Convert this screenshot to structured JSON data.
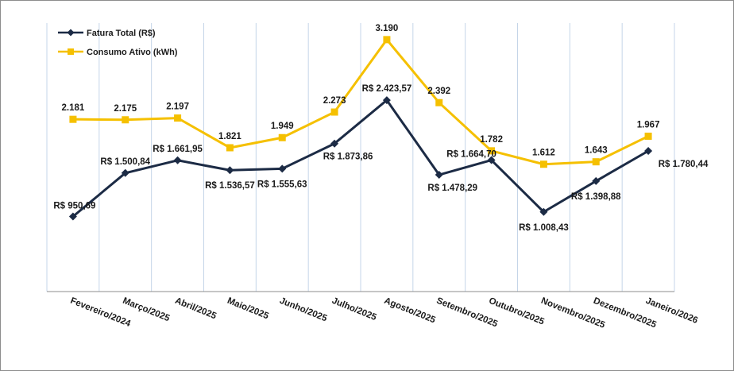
{
  "chart_data": {
    "type": "line",
    "title": "",
    "xlabel": "",
    "ylabel": "",
    "categories": [
      "Fevereiro/2024",
      "Março/2025",
      "Abril/2025",
      "Maio/2025",
      "Junho/2025",
      "Julho/2025",
      "Agosto/2025",
      "Setembro/2025",
      "Outubro/2025",
      "Novembro/2025",
      "Dezembro/2025",
      "Janeiro/2026"
    ],
    "ylim": [
      0,
      3400
    ],
    "grid": "vertical",
    "legend": "top-left",
    "series": [
      {
        "name": "Fatura Total (R$)",
        "color": "#1c2b45",
        "marker": "diamond",
        "values": [
          950.69,
          1500.84,
          1661.95,
          1536.57,
          1555.63,
          1873.86,
          2423.57,
          1478.29,
          1664.7,
          1008.43,
          1398.88,
          1780.44
        ],
        "labels": [
          "R$ 950,69",
          "R$ 1.500,84",
          "R$ 1.661,95",
          "R$ 1.536,57",
          "R$ 1.555,63",
          "R$ 1.873,86",
          "R$ 2.423,57",
          "R$ 1.478,29",
          "R$ 1.664,70",
          "R$ 1.008,43",
          "R$ 1.398,88",
          "R$ 1.780,44"
        ]
      },
      {
        "name": "Consumo Ativo (kWh)",
        "color": "#f5c000",
        "marker": "square",
        "values": [
          2181,
          2175,
          2197,
          1821,
          1949,
          2273,
          3190,
          2392,
          1782,
          1612,
          1643,
          1967
        ],
        "labels": [
          "2.181",
          "2.175",
          "2.197",
          "1.821",
          "1.949",
          "2.273",
          "3.190",
          "2.392",
          "1.782",
          "1.612",
          "1.643",
          "1.967"
        ]
      }
    ]
  }
}
